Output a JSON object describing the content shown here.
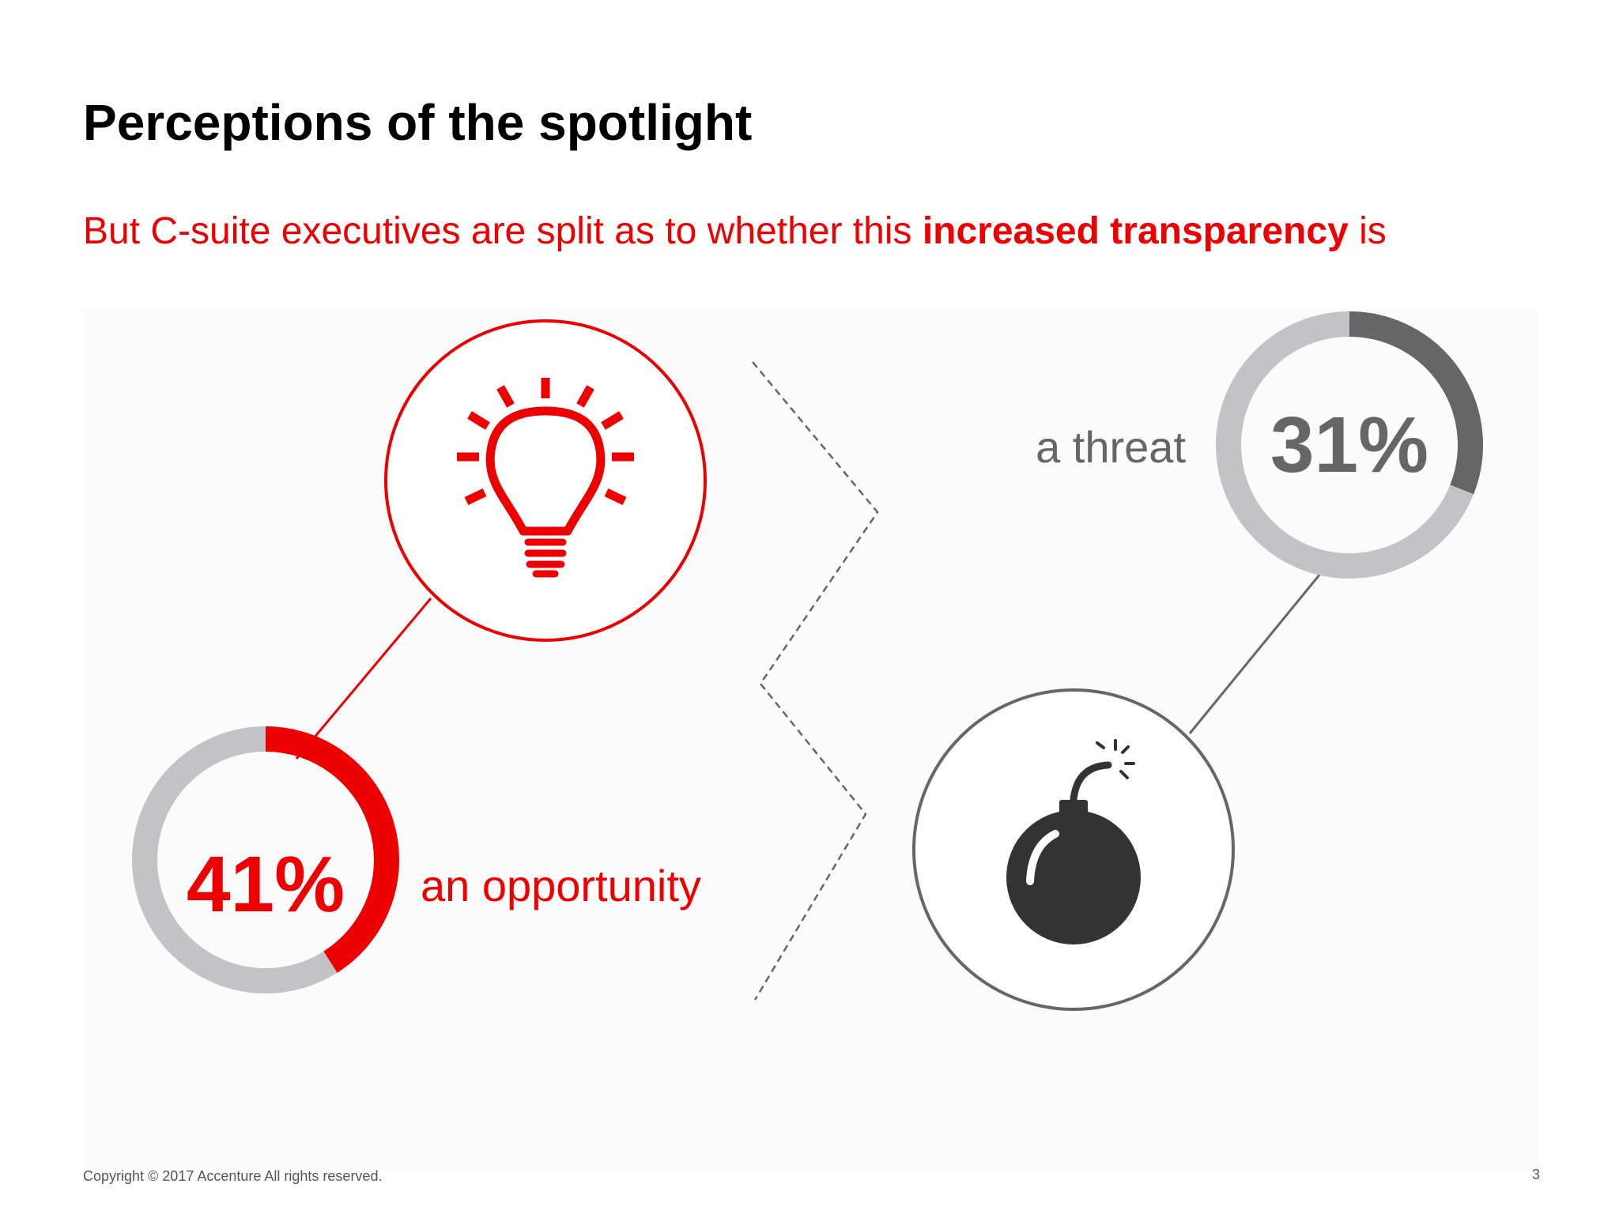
{
  "slide": {
    "title": "Perceptions of the spotlight",
    "subtitle_pre": "But C-suite executives are split as to whether this ",
    "subtitle_bold": "increased transparency",
    "subtitle_post": " is",
    "copyright": "Copyright © 2017 Accenture  All rights reserved.",
    "page_number": "3"
  },
  "colors": {
    "accent_red": "#ee0000",
    "dark_gray": "#666666",
    "light_gray": "#c3c3c5",
    "bomb_black": "#333333"
  },
  "icons": {
    "opportunity": "lightbulb-icon",
    "threat": "bomb-icon"
  },
  "chart_data": [
    {
      "type": "pie",
      "categories": [
        "an opportunity"
      ],
      "values": [
        41
      ],
      "value_label": "41%",
      "caption": "an opportunity",
      "color": "#ee0000",
      "ylim": [
        0,
        100
      ]
    },
    {
      "type": "pie",
      "categories": [
        "a threat"
      ],
      "values": [
        31
      ],
      "value_label": "31%",
      "caption": "a threat",
      "color": "#666666",
      "ylim": [
        0,
        100
      ]
    }
  ]
}
